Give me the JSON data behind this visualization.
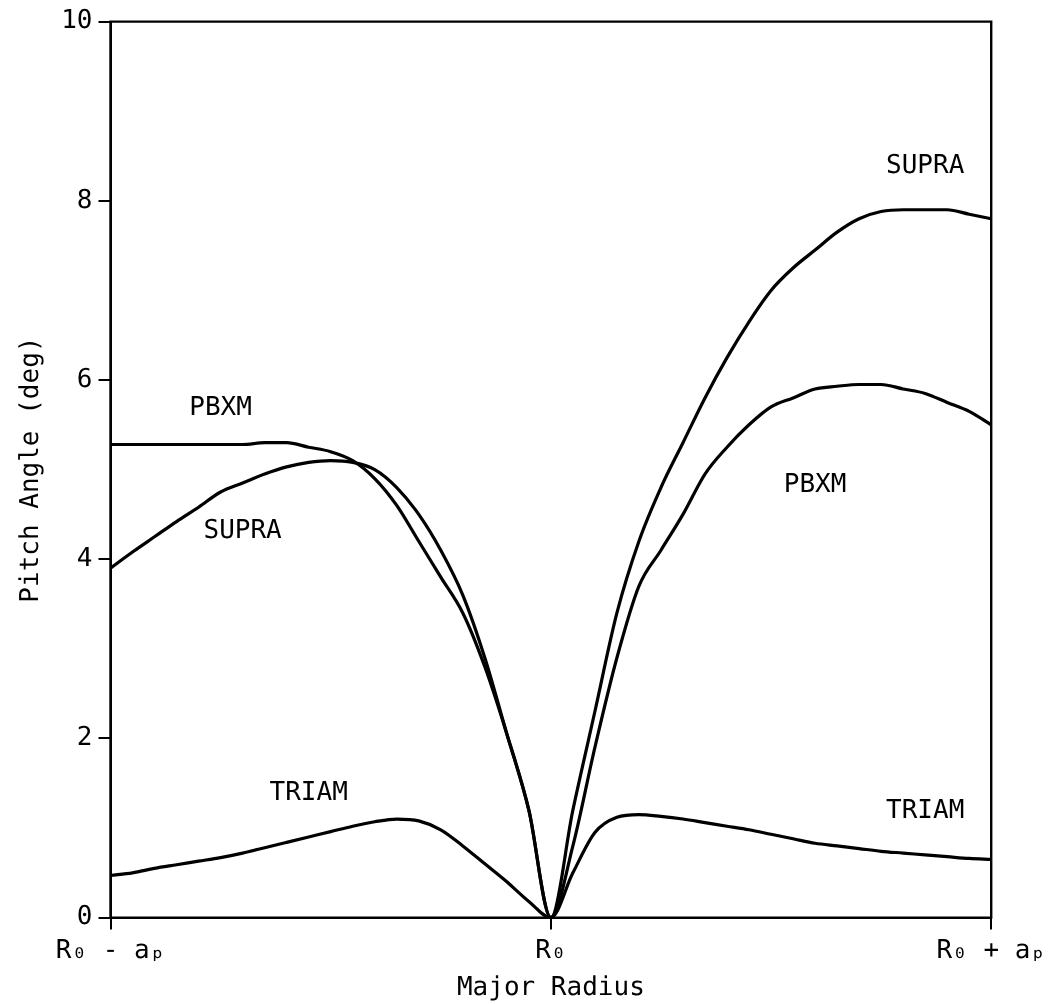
{
  "chart_data": {
    "type": "line",
    "xlabel": "Major Radius",
    "ylabel": "Pitch Angle (deg)",
    "categories": [
      "R₀ - aₚ",
      null,
      null,
      null,
      null,
      null,
      null,
      null,
      null,
      null,
      null,
      null,
      null,
      null,
      null,
      null,
      null,
      null,
      null,
      null,
      "R₀",
      null,
      null,
      null,
      null,
      null,
      null,
      null,
      null,
      null,
      null,
      null,
      null,
      null,
      null,
      null,
      null,
      null,
      null,
      null,
      "R₀ + aₚ"
    ],
    "ylim": [
      0,
      10
    ],
    "yticks": [
      0,
      2,
      4,
      6,
      8,
      10
    ],
    "grid": false,
    "legend": false,
    "marker": "none",
    "line_style": "solid",
    "series": [
      {
        "name": "SUPRA",
        "color": "#000000",
        "values": [
          3.9,
          4.08,
          4.25,
          4.42,
          4.58,
          4.75,
          4.85,
          4.95,
          5.03,
          5.08,
          5.1,
          5.08,
          5.0,
          4.8,
          4.5,
          4.1,
          3.6,
          2.9,
          2.05,
          1.2,
          0,
          1.2,
          2.3,
          3.4,
          4.2,
          4.8,
          5.3,
          5.8,
          6.25,
          6.65,
          7.0,
          7.25,
          7.45,
          7.65,
          7.8,
          7.88,
          7.9,
          7.9,
          7.9,
          7.85,
          7.8
        ]
      },
      {
        "name": "PBXM",
        "color": "#000000",
        "values": [
          5.28,
          5.28,
          5.28,
          5.28,
          5.28,
          5.28,
          5.28,
          5.3,
          5.3,
          5.25,
          5.2,
          5.1,
          4.9,
          4.6,
          4.2,
          3.8,
          3.4,
          2.8,
          2.05,
          1.2,
          0,
          0.8,
          1.9,
          2.9,
          3.7,
          4.1,
          4.5,
          4.95,
          5.25,
          5.5,
          5.7,
          5.8,
          5.9,
          5.93,
          5.95,
          5.95,
          5.9,
          5.85,
          5.75,
          5.65,
          5.5
        ]
      },
      {
        "name": "TRIAM",
        "color": "#000000",
        "values": [
          0.47,
          0.5,
          0.55,
          0.59,
          0.63,
          0.67,
          0.72,
          0.78,
          0.84,
          0.9,
          0.96,
          1.02,
          1.07,
          1.1,
          1.08,
          0.98,
          0.8,
          0.6,
          0.4,
          0.18,
          0,
          0.5,
          0.95,
          1.12,
          1.15,
          1.13,
          1.1,
          1.06,
          1.02,
          0.98,
          0.93,
          0.88,
          0.83,
          0.8,
          0.77,
          0.74,
          0.72,
          0.7,
          0.68,
          0.66,
          0.65
        ]
      }
    ]
  }
}
